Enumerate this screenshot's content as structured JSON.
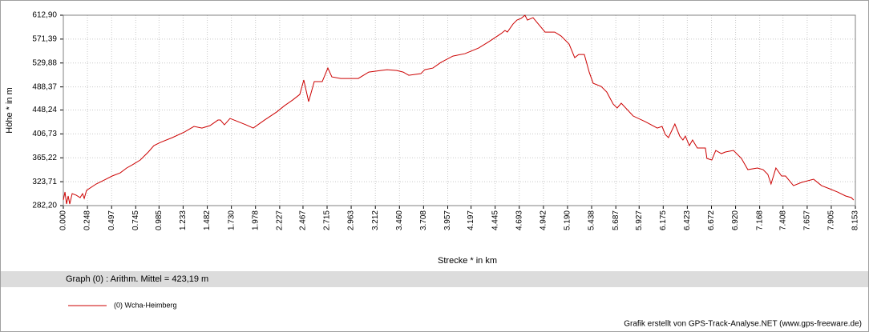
{
  "chart_data": {
    "type": "line",
    "y_label": "Höhe *  in  m",
    "x_label": "Strecke *  in  km",
    "annotation": "Graph (0) :  Arithm. Mittel = 423,19 m",
    "credit": "Grafik erstellt von GPS-Track-Analyse.NET (www.gps-freeware.de)",
    "grid": true,
    "xlim": [
      0,
      8.153
    ],
    "ylim": [
      282.2,
      612.9
    ],
    "yticks": [
      {
        "value": 282.2,
        "label": "282,20"
      },
      {
        "value": 323.71,
        "label": "323,71"
      },
      {
        "value": 365.22,
        "label": "365,22"
      },
      {
        "value": 406.73,
        "label": "406,73"
      },
      {
        "value": 448.24,
        "label": "448,24"
      },
      {
        "value": 488.37,
        "label": "488,37"
      },
      {
        "value": 529.88,
        "label": "529,88"
      },
      {
        "value": 571.39,
        "label": "571,39"
      },
      {
        "value": 612.9,
        "label": "612,90"
      }
    ],
    "xticks": [
      {
        "value": 0,
        "label": "0.000"
      },
      {
        "value": 0.248,
        "label": "0.248"
      },
      {
        "value": 0.497,
        "label": "0.497"
      },
      {
        "value": 0.745,
        "label": "0.745"
      },
      {
        "value": 0.985,
        "label": "0.985"
      },
      {
        "value": 1.233,
        "label": "1.233"
      },
      {
        "value": 1.482,
        "label": "1.482"
      },
      {
        "value": 1.73,
        "label": "1.730"
      },
      {
        "value": 1.978,
        "label": "1.978"
      },
      {
        "value": 2.227,
        "label": "2.227"
      },
      {
        "value": 2.467,
        "label": "2.467"
      },
      {
        "value": 2.715,
        "label": "2.715"
      },
      {
        "value": 2.963,
        "label": "2.963"
      },
      {
        "value": 3.212,
        "label": "3.212"
      },
      {
        "value": 3.46,
        "label": "3.460"
      },
      {
        "value": 3.708,
        "label": "3.708"
      },
      {
        "value": 3.957,
        "label": "3.957"
      },
      {
        "value": 4.197,
        "label": "4.197"
      },
      {
        "value": 4.445,
        "label": "4.445"
      },
      {
        "value": 4.693,
        "label": "4.693"
      },
      {
        "value": 4.942,
        "label": "4.942"
      },
      {
        "value": 5.19,
        "label": "5.190"
      },
      {
        "value": 5.438,
        "label": "5.438"
      },
      {
        "value": 5.687,
        "label": "5.687"
      },
      {
        "value": 5.927,
        "label": "5.927"
      },
      {
        "value": 6.175,
        "label": "6.175"
      },
      {
        "value": 6.423,
        "label": "6.423"
      },
      {
        "value": 6.672,
        "label": "6.672"
      },
      {
        "value": 6.92,
        "label": "6.920"
      },
      {
        "value": 7.168,
        "label": "7.168"
      },
      {
        "value": 7.408,
        "label": "7.408"
      },
      {
        "value": 7.657,
        "label": "7.657"
      },
      {
        "value": 7.905,
        "label": "7.905"
      },
      {
        "value": 8.153,
        "label": "8.153"
      }
    ],
    "x": [
      0,
      0.017,
      0.033,
      0.05,
      0.066,
      0.091,
      0.132,
      0.173,
      0.198,
      0.215,
      0.239,
      0.338,
      0.421,
      0.503,
      0.586,
      0.652,
      0.71,
      0.792,
      0.875,
      0.932,
      0.998,
      1.122,
      1.246,
      1.345,
      1.427,
      1.51,
      1.592,
      1.617,
      1.658,
      1.716,
      1.799,
      1.881,
      1.955,
      2.071,
      2.195,
      2.277,
      2.36,
      2.434,
      2.475,
      2.525,
      2.583,
      2.665,
      2.723,
      2.764,
      2.855,
      3.036,
      3.144,
      3.267,
      3.333,
      3.432,
      3.498,
      3.556,
      3.68,
      3.721,
      3.804,
      3.886,
      4.01,
      4.134,
      4.274,
      4.381,
      4.505,
      4.546,
      4.571,
      4.629,
      4.67,
      4.711,
      4.752,
      4.777,
      4.835,
      4.876,
      4.959,
      5.058,
      5.124,
      5.206,
      5.264,
      5.305,
      5.363,
      5.413,
      5.454,
      5.536,
      5.594,
      5.66,
      5.701,
      5.743,
      5.866,
      5.99,
      6.114,
      6.163,
      6.196,
      6.229,
      6.295,
      6.345,
      6.378,
      6.403,
      6.444,
      6.477,
      6.526,
      6.609,
      6.625,
      6.675,
      6.716,
      6.774,
      6.815,
      6.898,
      6.98,
      7.046,
      7.145,
      7.203,
      7.252,
      7.285,
      7.335,
      7.393,
      7.434,
      7.516,
      7.599,
      7.723,
      7.805,
      7.888,
      7.97,
      8.053,
      8.111,
      8.135
    ],
    "series": [
      {
        "name": "(0) Wcha-Heimberg",
        "color": "#cc0000",
        "values": [
          291.9,
          305.8,
          285,
          298.9,
          285,
          303,
          300.3,
          296.1,
          303,
          294.7,
          308.6,
          319.7,
          326.6,
          333.6,
          339.1,
          347.5,
          353,
          361.4,
          375.3,
          386.4,
          391.9,
          400.3,
          410,
          419.7,
          416.9,
          421.1,
          430.8,
          430.8,
          422.5,
          433.6,
          428,
          422.5,
          416.9,
          430.8,
          444.7,
          455.8,
          465.5,
          475.3,
          500.3,
          462.8,
          497.5,
          497.5,
          521.1,
          505.8,
          503,
          503,
          514.1,
          516.9,
          518.3,
          516.9,
          514.1,
          508.6,
          511.4,
          518.3,
          521.1,
          530.8,
          541.9,
          546.1,
          555.8,
          567,
          580.8,
          586.4,
          583.6,
          597.5,
          604.5,
          607.2,
          612.8,
          604.5,
          608.6,
          600.3,
          583.6,
          583.6,
          576.7,
          562.8,
          539.2,
          544.7,
          544.7,
          514.1,
          494.7,
          489.2,
          479.4,
          458.6,
          451.7,
          460,
          437.8,
          428,
          416.9,
          419.7,
          405.8,
          400.3,
          423.9,
          403,
          396.1,
          403,
          386.4,
          396.1,
          382.2,
          382.2,
          364.1,
          361.4,
          378,
          372.5,
          375.3,
          378,
          364.1,
          344.7,
          347.5,
          344.7,
          336.4,
          319.7,
          347.5,
          333.6,
          333.6,
          316.9,
          322.5,
          328,
          316.9,
          311.4,
          305.8,
          298.9,
          296.1,
          291.9
        ]
      }
    ]
  }
}
